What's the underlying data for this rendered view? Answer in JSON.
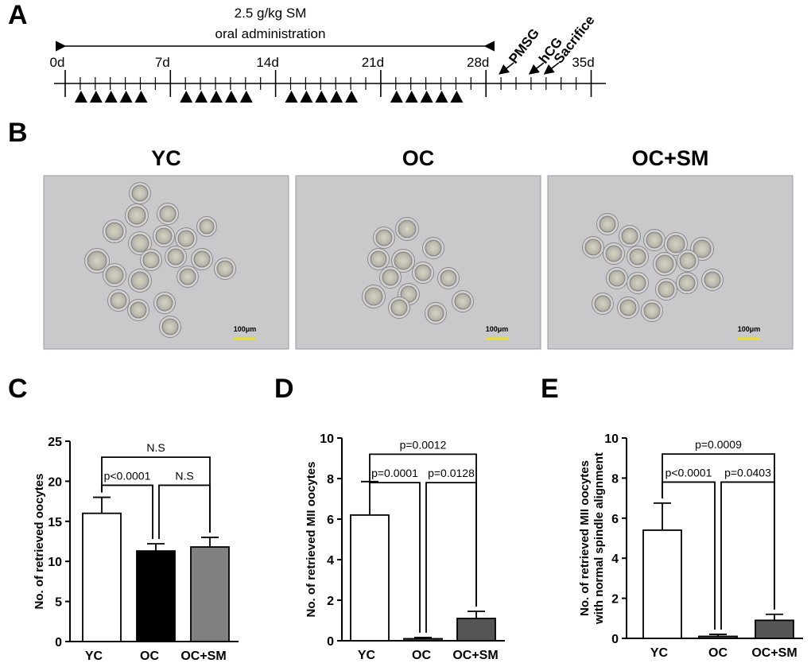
{
  "panels": {
    "a": "A",
    "b": "B",
    "c": "C",
    "d": "D",
    "e": "E"
  },
  "timeline": {
    "treatment_line1": "2.5 g/kg SM",
    "treatment_line2": "oral administration",
    "day_labels": [
      "0d",
      "7d",
      "14d",
      "21d",
      "28d",
      "35d"
    ],
    "day_values": [
      0,
      7,
      14,
      21,
      28,
      35
    ],
    "dosing_days": [
      1,
      2,
      3,
      4,
      5,
      8,
      9,
      10,
      11,
      12,
      15,
      16,
      17,
      18,
      19,
      22,
      23,
      24,
      25,
      26
    ],
    "events": [
      {
        "label": "PMSG",
        "day": 29
      },
      {
        "label": "hCG",
        "day": 31
      },
      {
        "label": "Sacrifice",
        "day": 32
      }
    ]
  },
  "micrographs": {
    "titles": [
      "YC",
      "OC",
      "OC+SM"
    ],
    "scale_bar": "100μm",
    "colors": {
      "background": "#c9c9cb",
      "scale_bar": "#f2e600"
    }
  },
  "chart_data": [
    {
      "type": "bar",
      "panel": "C",
      "ylabel": "No. of retrieved oocytes",
      "ylim": [
        0,
        25
      ],
      "yticks": [
        0,
        5,
        10,
        15,
        20,
        25
      ],
      "categories": [
        "YC",
        "OC",
        "OC+SM"
      ],
      "values": [
        16.0,
        11.3,
        11.8
      ],
      "errors": [
        2.0,
        0.9,
        1.2
      ],
      "colors": [
        "#ffffff",
        "#000000",
        "#808080"
      ],
      "comparisons": [
        {
          "from": 0,
          "to": 1,
          "label": "p<0.0001",
          "level": 1
        },
        {
          "from": 1,
          "to": 2,
          "label": "N.S",
          "level": 1
        },
        {
          "from": 0,
          "to": 2,
          "label": "N.S",
          "level": 2
        }
      ]
    },
    {
      "type": "bar",
      "panel": "D",
      "ylabel": "No. of retrieved MII oocytes",
      "ylim": [
        0,
        10
      ],
      "yticks": [
        0,
        2,
        4,
        6,
        8,
        10
      ],
      "categories": [
        "YC",
        "OC",
        "OC+SM"
      ],
      "values": [
        6.2,
        0.1,
        1.1
      ],
      "errors": [
        1.65,
        0.06,
        0.35
      ],
      "colors": [
        "#ffffff",
        "#555555",
        "#555555"
      ],
      "comparisons": [
        {
          "from": 0,
          "to": 1,
          "label": "p=0.0001",
          "level": 1
        },
        {
          "from": 1,
          "to": 2,
          "label": "p=0.0128",
          "level": 1
        },
        {
          "from": 0,
          "to": 2,
          "label": "p=0.0012",
          "level": 2
        }
      ]
    },
    {
      "type": "bar",
      "panel": "E",
      "ylabel_line1": "No. of retrieved MII oocytes",
      "ylabel_line2": "with normal spindle alignment",
      "ylim": [
        0,
        10
      ],
      "yticks": [
        0,
        2,
        4,
        6,
        8,
        10
      ],
      "categories": [
        "YC",
        "OC",
        "OC+SM"
      ],
      "values": [
        5.4,
        0.1,
        0.9
      ],
      "errors": [
        1.35,
        0.1,
        0.3
      ],
      "colors": [
        "#ffffff",
        "#555555",
        "#555555"
      ],
      "comparisons": [
        {
          "from": 0,
          "to": 1,
          "label": "p<0.0001",
          "level": 1
        },
        {
          "from": 1,
          "to": 2,
          "label": "p=0.0403",
          "level": 1
        },
        {
          "from": 0,
          "to": 2,
          "label": "p=0.0009",
          "level": 2
        }
      ]
    }
  ]
}
